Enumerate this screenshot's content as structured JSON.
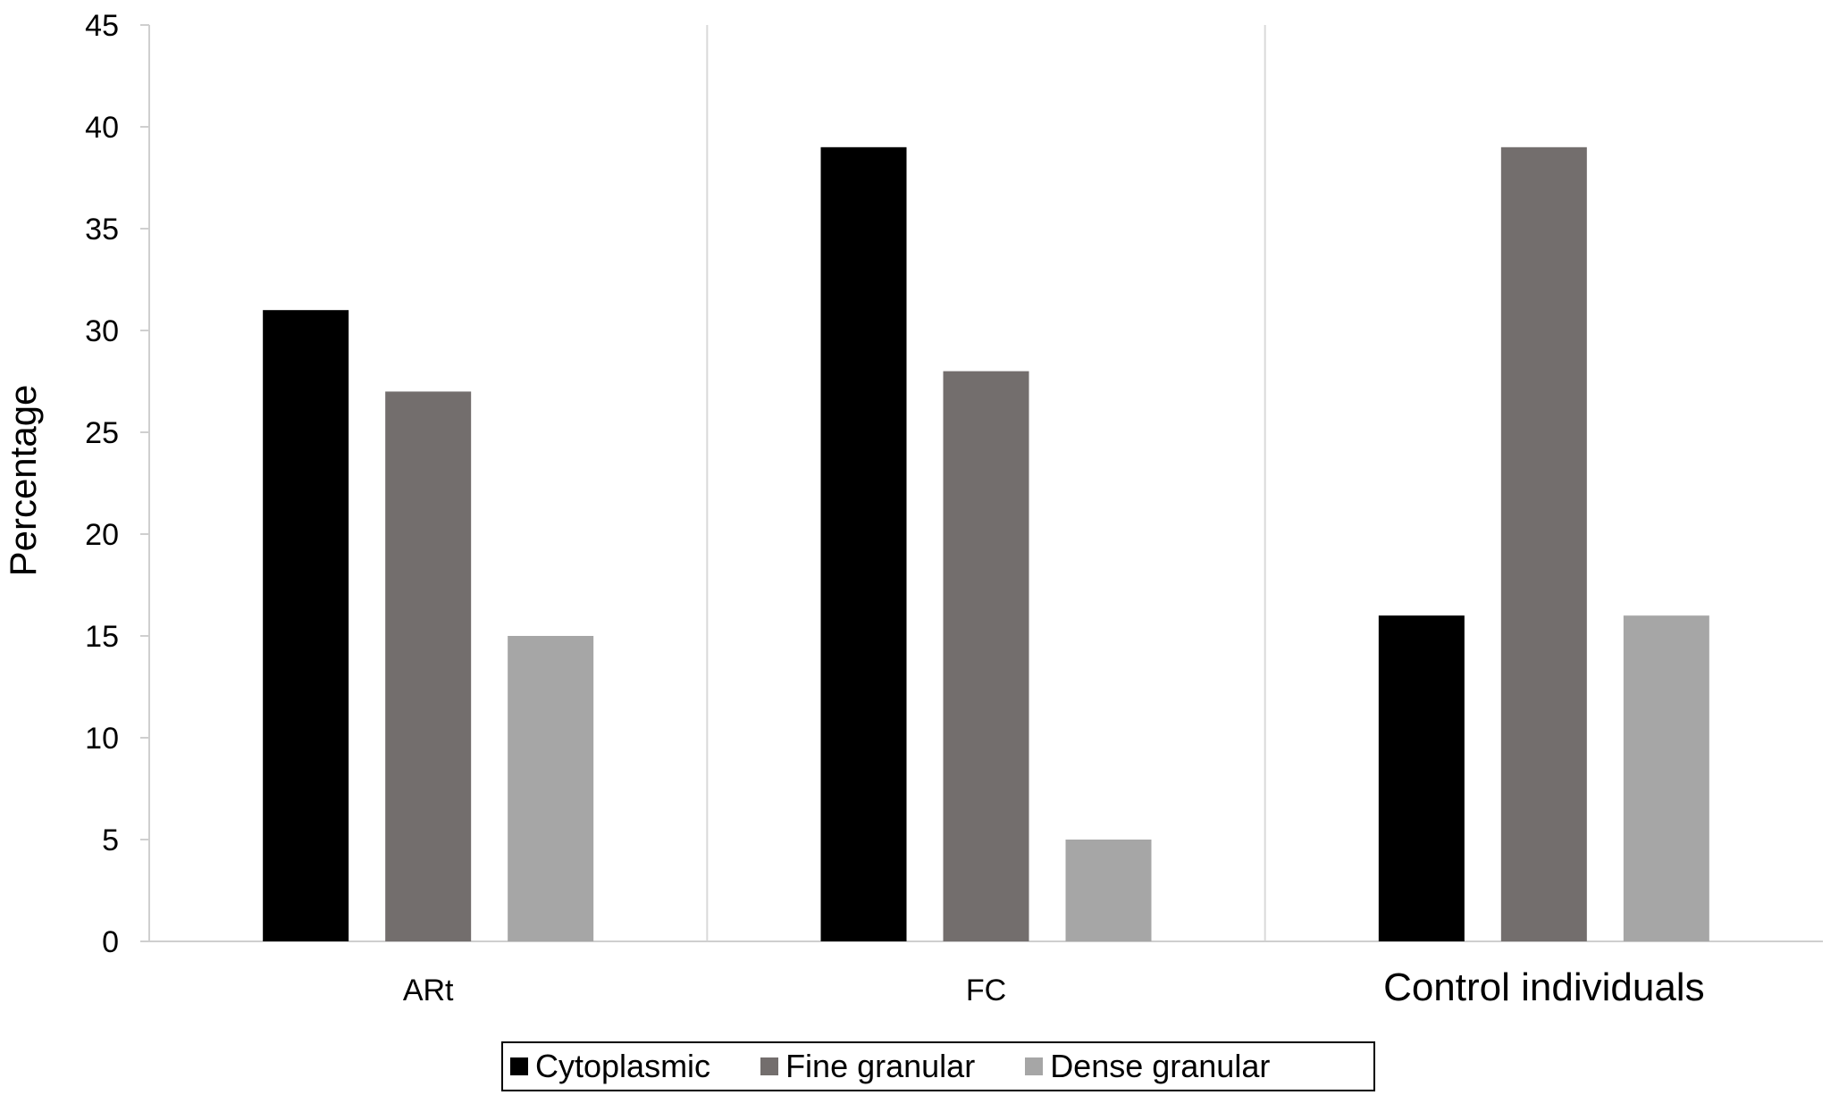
{
  "chart_data": {
    "type": "bar",
    "categories": [
      "ARt",
      "FC",
      "Control individuals"
    ],
    "series": [
      {
        "name": "Cytoplasmic",
        "values": [
          31,
          39,
          16
        ],
        "color": "#000000"
      },
      {
        "name": "Fine granular",
        "values": [
          27,
          28,
          39
        ],
        "color": "#736e6d"
      },
      {
        "name": "Dense granular",
        "values": [
          15,
          5,
          16
        ],
        "color": "#a6a6a6"
      }
    ],
    "title": "",
    "xlabel": "",
    "ylabel": "Percentage",
    "ylim": [
      0,
      45
    ],
    "yticks": [
      0,
      5,
      10,
      15,
      20,
      25,
      30,
      35,
      40,
      45
    ],
    "grid": "vertical category separators",
    "legend_position": "bottom"
  }
}
